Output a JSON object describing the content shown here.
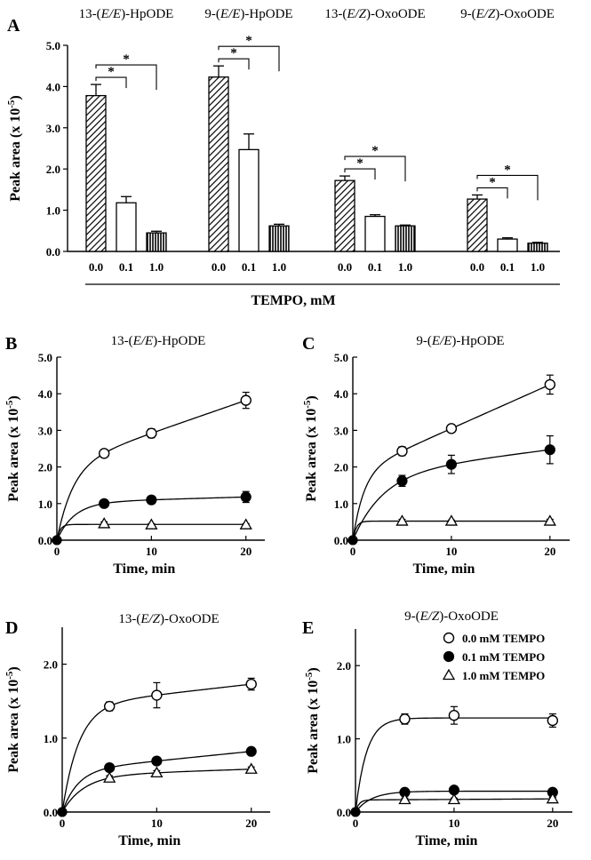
{
  "figure": {
    "legend": {
      "entries": [
        {
          "marker": "open-circle",
          "label": "0.0 mM TEMPO"
        },
        {
          "marker": "filled-circle",
          "label": "0.1 mM TEMPO"
        },
        {
          "marker": "open-triangle",
          "label": "1.0 mM TEMPO"
        }
      ]
    },
    "panels": [
      {
        "label": "A"
      },
      {
        "label": "B"
      },
      {
        "label": "C"
      },
      {
        "label": "D"
      },
      {
        "label": "E"
      }
    ]
  },
  "chart_data": [
    {
      "panel": "A",
      "type": "bar",
      "ylabel": "Peak area (x 10",
      "ylabel_sup": "-5",
      "ylabel_close": ")",
      "xlabel": "TEMPO, mM",
      "ylim": [
        0,
        5
      ],
      "yticks": [
        "0.0",
        "1.0",
        "2.0",
        "3.0",
        "4.0",
        "5.0"
      ],
      "significance_marker": "*",
      "groups": [
        {
          "title_pre": "13-(",
          "title_it": "E/E",
          "title_post": ")-HpODE",
          "categories": [
            "0.0",
            "0.1",
            "1.0"
          ],
          "values": [
            3.78,
            1.18,
            0.45
          ],
          "errors": [
            0.27,
            0.15,
            0.04
          ]
        },
        {
          "title_pre": "9-(",
          "title_it": "E/E",
          "title_post": ")-HpODE",
          "categories": [
            "0.0",
            "0.1",
            "1.0"
          ],
          "values": [
            4.23,
            2.47,
            0.62
          ],
          "errors": [
            0.27,
            0.38,
            0.04
          ]
        },
        {
          "title_pre": "13-(",
          "title_it": "E/Z",
          "title_post": ")-OxoODE",
          "categories": [
            "0.0",
            "0.1",
            "1.0"
          ],
          "values": [
            1.72,
            0.85,
            0.62
          ],
          "errors": [
            0.11,
            0.04,
            0.02
          ]
        },
        {
          "title_pre": "9-(",
          "title_it": "E/Z",
          "title_post": ")-OxoODE",
          "categories": [
            "0.0",
            "0.1",
            "1.0"
          ],
          "values": [
            1.27,
            0.3,
            0.2
          ],
          "errors": [
            0.1,
            0.03,
            0.02
          ]
        }
      ]
    },
    {
      "panel": "B",
      "type": "line",
      "title_pre": "13-(",
      "title_it": "E/E",
      "title_post": ")-HpODE",
      "xlabel": "Time, min",
      "ylabel": "Peak area (x 10",
      "ylabel_sup": "-5",
      "ylabel_close": ")",
      "xlim": [
        0,
        22
      ],
      "ylim": [
        0,
        5
      ],
      "xticks": [
        "0",
        "10",
        "20"
      ],
      "yticks": [
        "0.0",
        "1.0",
        "2.0",
        "3.0",
        "4.0",
        "5.0"
      ],
      "x": [
        0,
        5,
        10,
        20
      ],
      "series": [
        {
          "marker": "open-circle",
          "values": [
            0,
            2.37,
            2.92,
            3.82
          ],
          "errors": [
            0,
            0.1,
            0.12,
            0.22
          ]
        },
        {
          "marker": "filled-circle",
          "values": [
            0,
            1.0,
            1.1,
            1.18
          ],
          "errors": [
            0,
            0.05,
            0.1,
            0.15
          ]
        },
        {
          "marker": "open-triangle",
          "values": [
            0,
            0.45,
            0.42,
            0.42
          ],
          "errors": [
            0,
            0.05,
            0.03,
            0.03
          ]
        }
      ]
    },
    {
      "panel": "C",
      "type": "line",
      "title_pre": "9-(",
      "title_it": "E/E",
      "title_post": ")-HpODE",
      "xlabel": "Time, min",
      "ylabel": "Peak area (x 10",
      "ylabel_sup": "-5",
      "ylabel_close": ")",
      "xlim": [
        0,
        22
      ],
      "ylim": [
        0,
        5
      ],
      "xticks": [
        "0",
        "10",
        "20"
      ],
      "yticks": [
        "0.0",
        "1.0",
        "2.0",
        "3.0",
        "4.0",
        "5.0"
      ],
      "x": [
        0,
        5,
        10,
        20
      ],
      "series": [
        {
          "marker": "open-circle",
          "values": [
            0,
            2.43,
            3.05,
            4.25
          ],
          "errors": [
            0,
            0.12,
            0.1,
            0.26
          ]
        },
        {
          "marker": "filled-circle",
          "values": [
            0,
            1.62,
            2.07,
            2.47
          ],
          "errors": [
            0,
            0.15,
            0.25,
            0.38
          ]
        },
        {
          "marker": "open-triangle",
          "values": [
            0,
            0.52,
            0.52,
            0.52
          ],
          "errors": [
            0,
            0.05,
            0.03,
            0.05
          ]
        }
      ]
    },
    {
      "panel": "D",
      "type": "line",
      "title_pre": "13-(",
      "title_it": "E/Z",
      "title_post": ")-OxoODE",
      "xlabel": "Time, min",
      "ylabel": "Peak area (x 10",
      "ylabel_sup": "-5",
      "ylabel_close": ")",
      "xlim": [
        0,
        22
      ],
      "ylim": [
        0,
        2.5
      ],
      "xticks": [
        "0",
        "10",
        "20"
      ],
      "yticks": [
        "0.0",
        "1.0",
        "2.0"
      ],
      "x": [
        0,
        5,
        10,
        20
      ],
      "series": [
        {
          "marker": "open-circle",
          "values": [
            0,
            1.43,
            1.58,
            1.73
          ],
          "errors": [
            0,
            0.06,
            0.17,
            0.08
          ]
        },
        {
          "marker": "filled-circle",
          "values": [
            0,
            0.6,
            0.69,
            0.82
          ],
          "errors": [
            0,
            0.03,
            0.03,
            0.04
          ]
        },
        {
          "marker": "open-triangle",
          "values": [
            0,
            0.46,
            0.53,
            0.58
          ],
          "errors": [
            0,
            0.03,
            0.03,
            0.03
          ]
        }
      ]
    },
    {
      "panel": "E",
      "type": "line",
      "title_pre": "9-(",
      "title_it": "E/Z",
      "title_post": ")-OxoODE",
      "xlabel": "Time, min",
      "ylabel": "Peak area (x 10",
      "ylabel_sup": "-5",
      "ylabel_close": ")",
      "xlim": [
        0,
        22
      ],
      "ylim": [
        0,
        2.5
      ],
      "xticks": [
        "0",
        "10",
        "20"
      ],
      "yticks": [
        "0.0",
        "1.0",
        "2.0"
      ],
      "x": [
        0,
        5,
        10,
        20
      ],
      "series": [
        {
          "marker": "open-circle",
          "values": [
            0,
            1.27,
            1.32,
            1.25
          ],
          "errors": [
            0,
            0.07,
            0.12,
            0.09
          ]
        },
        {
          "marker": "filled-circle",
          "values": [
            0,
            0.27,
            0.3,
            0.27
          ],
          "errors": [
            0,
            0.02,
            0.02,
            0.02
          ]
        },
        {
          "marker": "open-triangle",
          "values": [
            0,
            0.17,
            0.17,
            0.18
          ],
          "errors": [
            0,
            0.02,
            0.02,
            0.02
          ]
        }
      ]
    }
  ]
}
